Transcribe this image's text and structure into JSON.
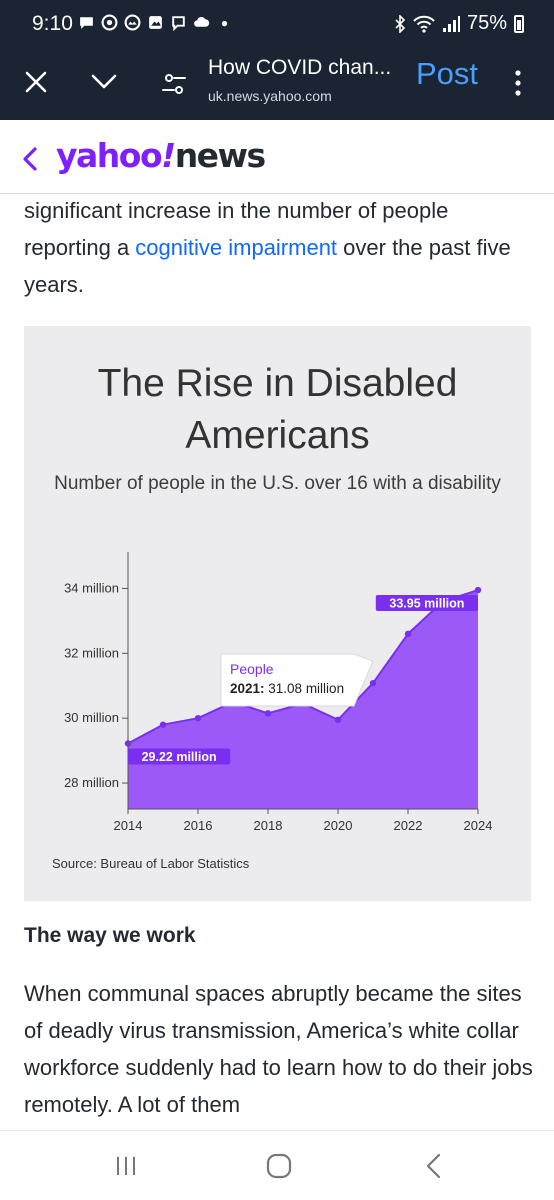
{
  "status_bar": {
    "time": "9:10",
    "battery": "75%",
    "left_icons": [
      "chat-bubble-icon",
      "game-controller-icon",
      "photo-icon",
      "image-icon",
      "viber-icon",
      "cloud-icon",
      "dot-icon"
    ],
    "right_icons": [
      "bluetooth-icon",
      "wifi-icon",
      "signal-icon",
      "battery-icon"
    ]
  },
  "tab_bar": {
    "title": "How COVID chan...",
    "url": "uk.news.yahoo.com",
    "post_label": "Post",
    "icons": [
      "close-icon",
      "chevron-down-icon",
      "settings-sliders-icon",
      "more-vertical-icon"
    ]
  },
  "header": {
    "logo_main": "yahoo",
    "logo_excl": "!",
    "logo_sub": "news"
  },
  "article": {
    "para1_before": "significant increase in the number of people reporting a ",
    "para1_link": "cognitive impairment",
    "para1_after": " over the past five years.",
    "section_heading": "The way we work",
    "para2": "When communal spaces abruptly became the sites of deadly virus transmission, America’s white collar workforce suddenly had to learn how to do their jobs remotely. A lot of them"
  },
  "chart_data": {
    "type": "area",
    "title": "The Rise in Disabled Americans",
    "subtitle": "Number of people in the U.S. over 16 with a disability",
    "source": "Source: Bureau of Labor Statistics",
    "x": [
      2014,
      2015,
      2016,
      2017,
      2018,
      2019,
      2020,
      2021,
      2022,
      2023,
      2024
    ],
    "values": [
      29.22,
      29.8,
      30.0,
      30.5,
      30.15,
      30.45,
      29.95,
      31.08,
      32.6,
      33.6,
      33.95
    ],
    "series": [
      {
        "name": "People",
        "values": [
          29.22,
          29.8,
          30.0,
          30.5,
          30.15,
          30.45,
          29.95,
          31.08,
          32.6,
          33.6,
          33.95
        ]
      }
    ],
    "xlim": [
      2014,
      2024
    ],
    "ylim": [
      27.2,
      35.0
    ],
    "x_ticks": [
      "2014",
      "2016",
      "2018",
      "2020",
      "2022",
      "2024"
    ],
    "y_ticks": [
      "28 million",
      "30 million",
      "32 million",
      "34 million"
    ],
    "y_tick_values": [
      28,
      30,
      32,
      34
    ],
    "data_labels": [
      {
        "index": 0,
        "text": "29.22 million"
      },
      {
        "index": 10,
        "text": "33.95 million"
      }
    ],
    "tooltip": {
      "series": "People",
      "year": "2021:",
      "value": "31.08 million",
      "index": 7
    },
    "grid": false,
    "colors": {
      "fill": "#9b59f8",
      "line": "#7a2ff0",
      "label_bg": "#7a2ff0",
      "tooltip_text": "#7a2ff0"
    }
  },
  "nav_bar": {
    "icons": [
      "recent-apps-icon",
      "home-icon",
      "back-icon"
    ]
  }
}
